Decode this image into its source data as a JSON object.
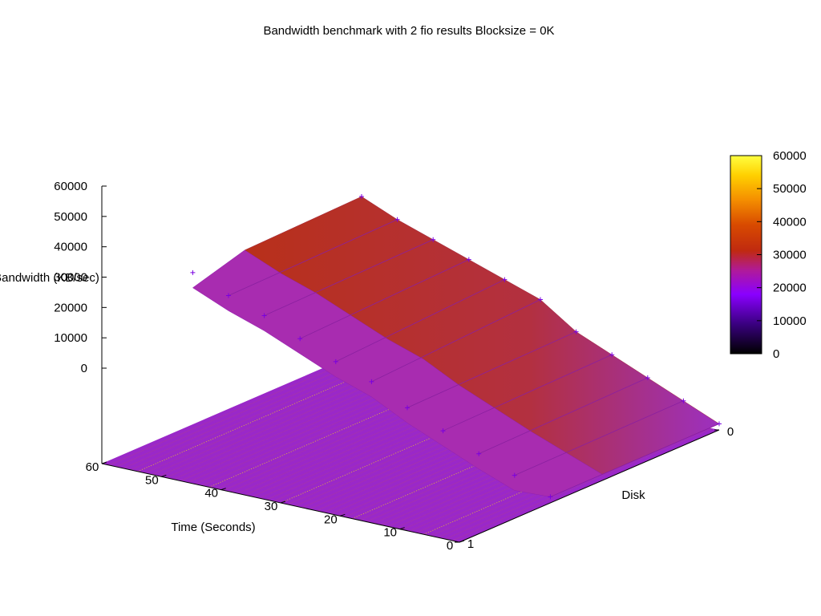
{
  "chart_data": {
    "type": "surface-3d",
    "title": "Bandwidth benchmark with 2 fio results  Blocksize = 0K",
    "xlabel": "Time (Seconds)",
    "ylabel": "Disk",
    "zlabel": "Bandwidth (KB/sec)",
    "z_ticks": [
      0,
      10000,
      20000,
      30000,
      40000,
      50000,
      60000
    ],
    "x_ticks": [
      0,
      10,
      20,
      30,
      40,
      50,
      60
    ],
    "y_ticks": [
      0,
      1
    ],
    "xlim": [
      0,
      60
    ],
    "ylim": [
      0,
      1
    ],
    "zlim": [
      0,
      60000
    ],
    "colorbar": {
      "ticks": [
        0,
        10000,
        20000,
        30000,
        40000,
        50000,
        60000
      ],
      "range": [
        0,
        60000
      ],
      "palette": [
        "#000000",
        "#3a0080",
        "#8a00ff",
        "#b01a9a",
        "#c02a10",
        "#d84a00",
        "#f59000",
        "#ffd000",
        "#ffff40"
      ]
    },
    "series": [
      {
        "disk": 0,
        "x": [
          0,
          6,
          12,
          18,
          24,
          30,
          36,
          42,
          48,
          54,
          60
        ],
        "values": [
          2000,
          7000,
          12000,
          17000,
          22000,
          30000,
          34000,
          38000,
          42000,
          46000,
          51000
        ]
      },
      {
        "disk": 1,
        "x": [
          0,
          6,
          12,
          18,
          24,
          30,
          36,
          42,
          48,
          54,
          60
        ],
        "values": [
          2000,
          6500,
          11000,
          16000,
          21000,
          27000,
          31000,
          36000,
          41000,
          45000,
          50000
        ]
      }
    ],
    "floor_color": "#9a28c8",
    "surface_top_color": "#b8301a",
    "surface_side_color": "#a42cb0",
    "grid": false,
    "legend": "colorbar-right"
  }
}
